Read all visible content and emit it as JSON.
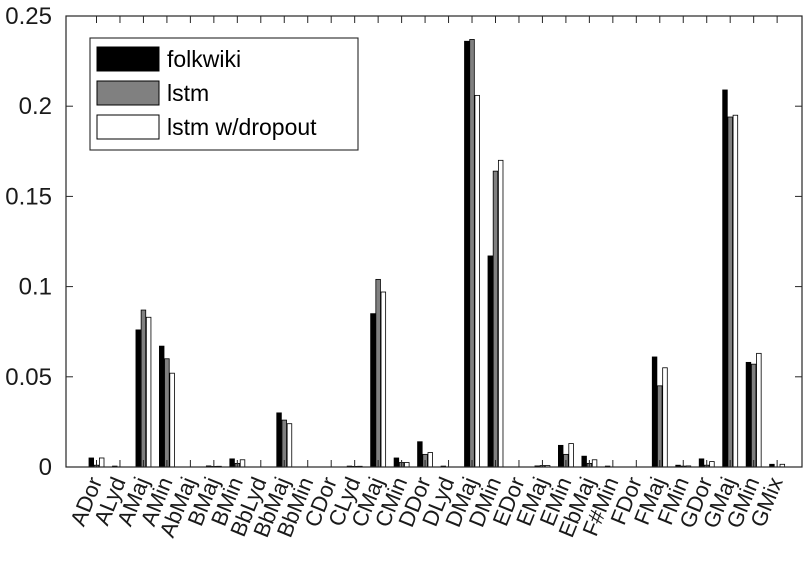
{
  "chart_data": {
    "type": "bar",
    "title": "",
    "xlabel": "",
    "ylabel": "",
    "ylim": [
      0,
      0.25
    ],
    "yticks": [
      0,
      0.05,
      0.1,
      0.15,
      0.2,
      0.25
    ],
    "ytick_labels": [
      "0",
      "0.05",
      "0.1",
      "0.15",
      "0.2",
      "0.25"
    ],
    "grid": false,
    "legend_position": "top-left",
    "categories": [
      "ADor",
      "ALyd",
      "AMaj",
      "AMin",
      "AbMaj",
      "BMaj",
      "BMin",
      "BbLyd",
      "BbMaj",
      "BbMin",
      "CDor",
      "CLyd",
      "CMaj",
      "CMin",
      "DDor",
      "DLyd",
      "DMaj",
      "DMin",
      "EDor",
      "EMaj",
      "EMin",
      "EbMaj",
      "F#Min",
      "FDor",
      "FMaj",
      "FMin",
      "GDor",
      "GMaj",
      "GMin",
      "GMix"
    ],
    "series": [
      {
        "name": "folkwiki",
        "color": "#000000",
        "values": [
          0.005,
          0.0005,
          0.076,
          0.067,
          0,
          0.0006,
          0.0045,
          0,
          0.03,
          0,
          0,
          0.0005,
          0.085,
          0.005,
          0.014,
          0.0005,
          0.236,
          0.117,
          0,
          0.0006,
          0.012,
          0.006,
          0.0005,
          0,
          0.061,
          0.001,
          0.0045,
          0.209,
          0.058,
          0.0015
        ]
      },
      {
        "name": "lstm",
        "color": "#808080",
        "values": [
          0.001,
          0,
          0.087,
          0.06,
          0,
          0.0003,
          0.002,
          0,
          0.026,
          0,
          0,
          0.0002,
          0.104,
          0.0025,
          0.007,
          0,
          0.237,
          0.164,
          0,
          0.0008,
          0.007,
          0.002,
          0,
          0,
          0.045,
          0.0005,
          0.001,
          0.194,
          0.057,
          0
        ]
      },
      {
        "name": "lstm w/dropout",
        "color": "#ffffff",
        "values": [
          0.005,
          0,
          0.083,
          0.052,
          0,
          0.0004,
          0.004,
          0,
          0.024,
          0,
          0,
          0.0004,
          0.097,
          0.0025,
          0.008,
          0,
          0.206,
          0.17,
          0,
          0.0008,
          0.013,
          0.004,
          0,
          0,
          0.055,
          0.0006,
          0.003,
          0.195,
          0.063,
          0.0015
        ]
      }
    ]
  }
}
